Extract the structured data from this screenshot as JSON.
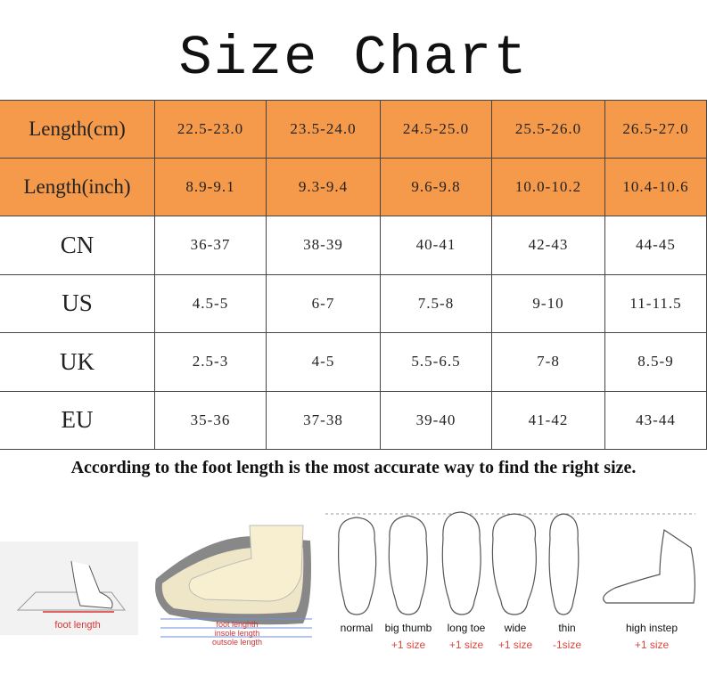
{
  "title": "Size Chart",
  "table": {
    "rows": [
      [
        "Length(cm)",
        "22.5-23.0",
        "23.5-24.0",
        "24.5-25.0",
        "25.5-26.0",
        "26.5-27.0"
      ],
      [
        "Length(inch)",
        "8.9-9.1",
        "9.3-9.4",
        "9.6-9.8",
        "10.0-10.2",
        "10.4-10.6"
      ],
      [
        "CN",
        "36-37",
        "38-39",
        "40-41",
        "42-43",
        "44-45"
      ],
      [
        "US",
        "4.5-5",
        "6-7",
        "7.5-8",
        "9-10",
        "11-11.5"
      ],
      [
        "UK",
        "2.5-3",
        "4-5",
        "5.5-6.5",
        "7-8",
        "8.5-9"
      ],
      [
        "EU",
        "35-36",
        "37-38",
        "39-40",
        "41-42",
        "43-44"
      ]
    ]
  },
  "note": "According to the foot length is the most  accurate way to find the right size.",
  "illustrations": {
    "foot_length": "foot length",
    "shoe_labels": [
      "foot lenghth",
      "insole length",
      "outsole length"
    ],
    "foot_types": [
      {
        "label": "normal"
      },
      {
        "label": "big thumb",
        "size": "+1 size"
      },
      {
        "label": "long toe",
        "size": "+1 size"
      },
      {
        "label": "wide",
        "size": "+1 size"
      },
      {
        "label": "thin",
        "size": "-1size"
      },
      {
        "label": "high instep",
        "size": "+1 size"
      }
    ]
  }
}
